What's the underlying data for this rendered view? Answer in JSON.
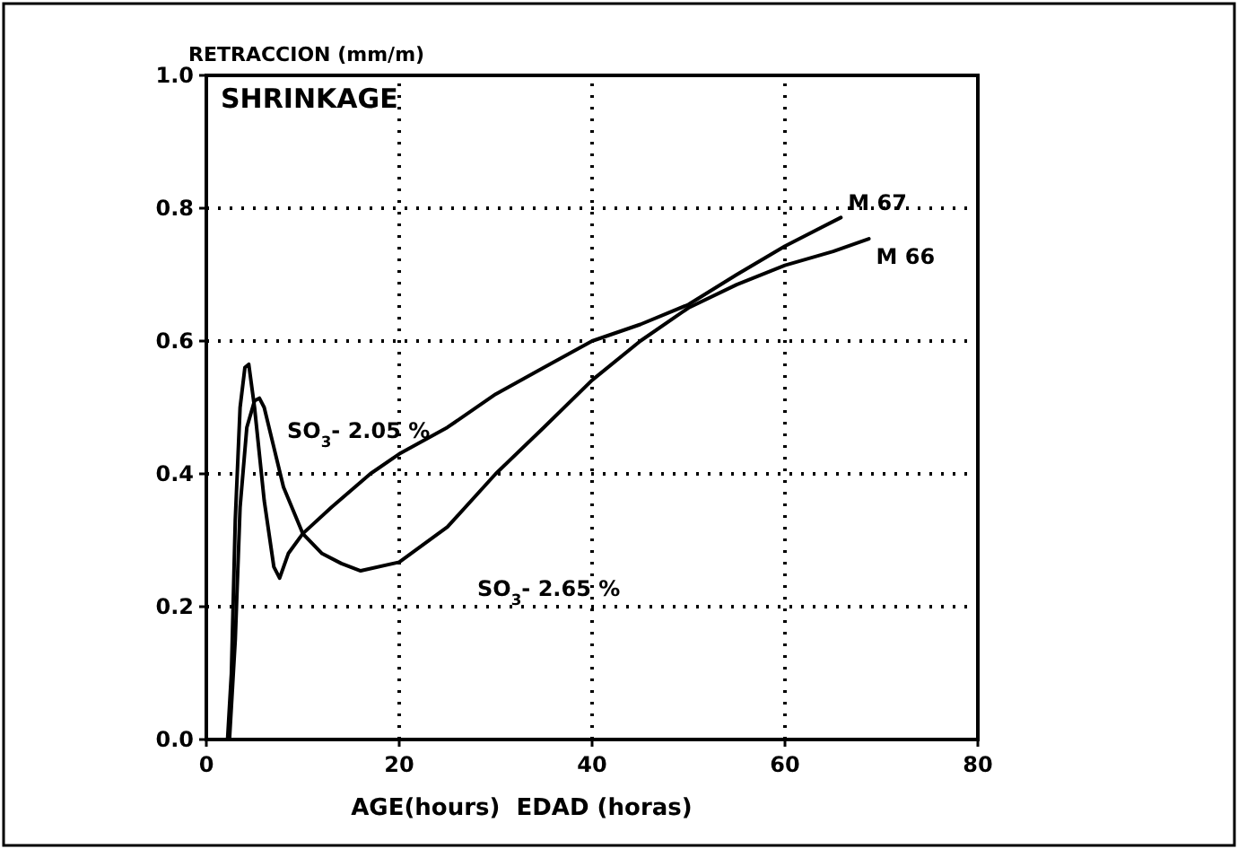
{
  "chart_data": {
    "type": "line",
    "title": "SHRINKAGE",
    "ylabel": "RETRACCION (mm/m)",
    "xlabel": "AGE(hours)  EDAD (horas)",
    "xlim": [
      0,
      80
    ],
    "xticks": [
      0,
      20,
      40,
      60,
      80
    ],
    "ylim": [
      0,
      1
    ],
    "yticks": [
      {
        "value": 0,
        "label": "0.0"
      },
      {
        "value": 0.2,
        "label": "0.2"
      },
      {
        "value": 0.4,
        "label": "0.4"
      },
      {
        "value": 0.6,
        "label": "0.6"
      },
      {
        "value": 0.8,
        "label": "0.8"
      },
      {
        "value": 1,
        "label": "1.0"
      }
    ],
    "grid": true,
    "marker": "none",
    "line_style": "solid",
    "series": [
      {
        "name": "M 67",
        "color": "#000000",
        "x": [
          2.2,
          2.6,
          3,
          3.5,
          4,
          4.4,
          5,
          6,
          7,
          7.6,
          8.5,
          10,
          13,
          17,
          20,
          25,
          30,
          35,
          40,
          45,
          50,
          55,
          60,
          65.8
        ],
        "values": [
          0,
          0.1,
          0.33,
          0.5,
          0.56,
          0.565,
          0.5,
          0.36,
          0.26,
          0.243,
          0.28,
          0.31,
          0.35,
          0.4,
          0.43,
          0.47,
          0.52,
          0.56,
          0.6,
          0.625,
          0.655,
          0.7,
          0.743,
          0.786
        ]
      },
      {
        "name": "M 66",
        "color": "#000000",
        "x": [
          2.4,
          3,
          3.5,
          4.2,
          5,
          5.5,
          6,
          7,
          8,
          10,
          12,
          14,
          16,
          20,
          25,
          30,
          35,
          40,
          45,
          50,
          55,
          60,
          65,
          68.7
        ],
        "values": [
          0,
          0.15,
          0.35,
          0.47,
          0.51,
          0.514,
          0.5,
          0.44,
          0.38,
          0.31,
          0.28,
          0.265,
          0.254,
          0.267,
          0.32,
          0.4,
          0.47,
          0.541,
          0.6,
          0.65,
          0.685,
          0.714,
          0.735,
          0.754
        ]
      }
    ],
    "annotations": [
      "SO$_{3}$- 2.05 %",
      "SO$_{3}$- 2.65 %"
    ]
  }
}
